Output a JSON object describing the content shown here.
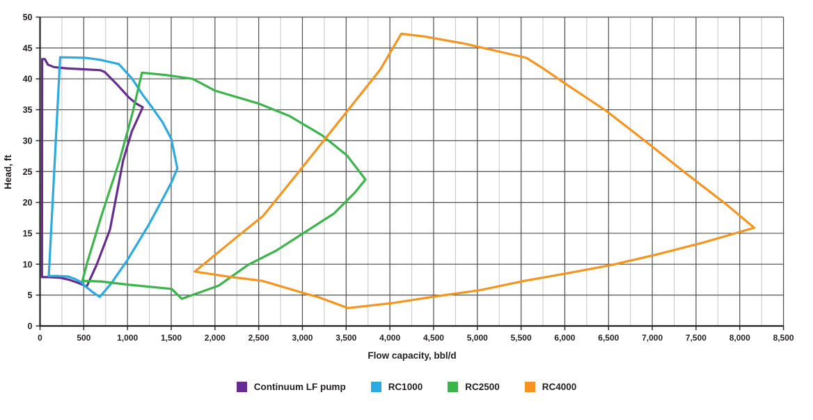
{
  "chart_data": {
    "type": "line",
    "title": "",
    "xlabel": "Flow capacity, bbl/d",
    "ylabel": "Head, ft",
    "xlim": [
      0,
      8500
    ],
    "ylim": [
      0,
      50
    ],
    "x_major_step": 500,
    "x_minor_step": 250,
    "y_major_step": 5,
    "grid": true,
    "legend_position": "bottom",
    "x_tick_labels": [
      "0",
      "500",
      "1,000",
      "1,500",
      "2,000",
      "2,500",
      "3,000",
      "3,500",
      "4,000",
      "4,500",
      "5,000",
      "5,500",
      "6,000",
      "6,500",
      "7,000",
      "7,500",
      "8,000",
      "8,500"
    ],
    "y_tick_labels": [
      "0",
      "5",
      "10",
      "15",
      "20",
      "25",
      "30",
      "35",
      "40",
      "45",
      "50"
    ],
    "series": [
      {
        "name": "Continuum LF pump",
        "color": "#662D91",
        "closed": true,
        "points": [
          [
            22,
            7.9
          ],
          [
            25,
            43.2
          ],
          [
            55,
            43.2
          ],
          [
            90,
            42.3
          ],
          [
            160,
            41.9
          ],
          [
            300,
            41.7
          ],
          [
            690,
            41.4
          ],
          [
            740,
            41.1
          ],
          [
            880,
            39.1
          ],
          [
            1015,
            37.0
          ],
          [
            1100,
            36.0
          ],
          [
            1175,
            35.4
          ],
          [
            1050,
            31.5
          ],
          [
            950,
            26.8
          ],
          [
            800,
            15.6
          ],
          [
            650,
            10.0
          ],
          [
            535,
            6.4
          ],
          [
            430,
            7.0
          ],
          [
            330,
            7.5
          ],
          [
            230,
            7.8
          ],
          [
            100,
            7.9
          ]
        ]
      },
      {
        "name": "RC1000",
        "color": "#29ABE2",
        "closed": true,
        "points": [
          [
            100,
            8.1
          ],
          [
            230,
            43.5
          ],
          [
            520,
            43.4
          ],
          [
            680,
            43.1
          ],
          [
            900,
            42.4
          ],
          [
            1055,
            40.0
          ],
          [
            1175,
            37.4
          ],
          [
            1255,
            35.9
          ],
          [
            1400,
            33.0
          ],
          [
            1500,
            30.3
          ],
          [
            1570,
            25.5
          ],
          [
            1505,
            23.3
          ],
          [
            1400,
            20.5
          ],
          [
            1240,
            16.3
          ],
          [
            1000,
            10.7
          ],
          [
            815,
            6.9
          ],
          [
            683,
            4.7
          ],
          [
            600,
            5.5
          ],
          [
            520,
            6.4
          ],
          [
            470,
            7.1
          ],
          [
            400,
            7.6
          ],
          [
            325,
            8.0
          ],
          [
            200,
            8.1
          ]
        ]
      },
      {
        "name": "RC2500",
        "color": "#39B54A",
        "closed": true,
        "points": [
          [
            485,
            7.3
          ],
          [
            540,
            10.3
          ],
          [
            710,
            18.2
          ],
          [
            910,
            26.8
          ],
          [
            1060,
            34.6
          ],
          [
            1165,
            41.0
          ],
          [
            1450,
            40.6
          ],
          [
            1745,
            40.0
          ],
          [
            2000,
            38.1
          ],
          [
            2500,
            36.0
          ],
          [
            2850,
            34.0
          ],
          [
            3220,
            30.9
          ],
          [
            3510,
            27.6
          ],
          [
            3720,
            23.7
          ],
          [
            3600,
            21.6
          ],
          [
            3360,
            18.2
          ],
          [
            2700,
            12.2
          ],
          [
            2380,
            9.9
          ],
          [
            2040,
            6.5
          ],
          [
            1620,
            4.4
          ],
          [
            1505,
            6.0
          ],
          [
            1000,
            6.7
          ],
          [
            700,
            7.2
          ]
        ]
      },
      {
        "name": "RC4000",
        "color": "#F7941E",
        "closed": true,
        "points": [
          [
            1770,
            8.8
          ],
          [
            2250,
            14.4
          ],
          [
            2550,
            17.8
          ],
          [
            2990,
            25.5
          ],
          [
            3255,
            30.2
          ],
          [
            3520,
            34.9
          ],
          [
            3890,
            41.5
          ],
          [
            4130,
            47.3
          ],
          [
            4420,
            46.8
          ],
          [
            4850,
            45.7
          ],
          [
            5560,
            43.4
          ],
          [
            5750,
            41.7
          ],
          [
            6040,
            38.9
          ],
          [
            6465,
            34.9
          ],
          [
            6940,
            29.7
          ],
          [
            7395,
            24.6
          ],
          [
            7845,
            19.7
          ],
          [
            8165,
            15.9
          ],
          [
            7950,
            15.0
          ],
          [
            7580,
            13.5
          ],
          [
            7060,
            11.6
          ],
          [
            6545,
            9.9
          ],
          [
            6055,
            8.6
          ],
          [
            5540,
            7.3
          ],
          [
            5030,
            5.8
          ],
          [
            4530,
            4.8
          ],
          [
            4025,
            3.7
          ],
          [
            3520,
            2.9
          ],
          [
            3175,
            4.7
          ],
          [
            3045,
            5.2
          ],
          [
            2540,
            7.3
          ],
          [
            2195,
            7.9
          ]
        ]
      }
    ]
  },
  "colors": {
    "grid_major": "#4D4D4F",
    "grid_minor": "#C4C6C8",
    "axis": "#231F20",
    "tick_text": "#231F20"
  }
}
